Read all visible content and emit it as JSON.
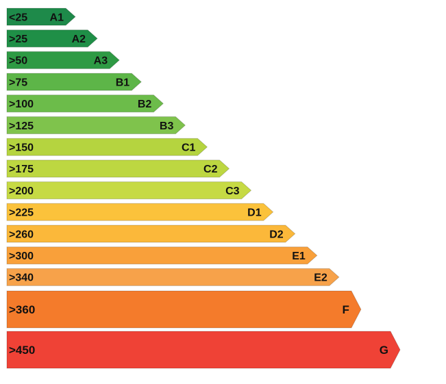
{
  "chart_data": {
    "type": "bar",
    "title": "",
    "xlabel": "",
    "ylabel": "",
    "grid": false,
    "bars": [
      {
        "range": "<25",
        "class": "A1",
        "color": "#1e8a4a"
      },
      {
        "range": ">25",
        "class": "A2",
        "color": "#1f8f47"
      },
      {
        "range": ">50",
        "class": "A3",
        "color": "#2e9a44"
      },
      {
        "range": ">75",
        "class": "B1",
        "color": "#5db548"
      },
      {
        "range": ">100",
        "class": "B2",
        "color": "#6cbc4a"
      },
      {
        "range": ">125",
        "class": "B3",
        "color": "#7fc34c"
      },
      {
        "range": ">150",
        "class": "C1",
        "color": "#b5d43f"
      },
      {
        "range": ">175",
        "class": "C2",
        "color": "#bdd741"
      },
      {
        "range": ">200",
        "class": "C3",
        "color": "#c6da44"
      },
      {
        "range": ">225",
        "class": "D1",
        "color": "#fbc23b"
      },
      {
        "range": ">260",
        "class": "D2",
        "color": "#fbb83a"
      },
      {
        "range": ">300",
        "class": "E1",
        "color": "#f9a03a"
      },
      {
        "range": ">340",
        "class": "E2",
        "color": "#f7a24a"
      },
      {
        "range": ">360",
        "class": "F",
        "color": "#f47b2b"
      },
      {
        "range": ">450",
        "class": "G",
        "color": "#ef4236"
      }
    ]
  }
}
